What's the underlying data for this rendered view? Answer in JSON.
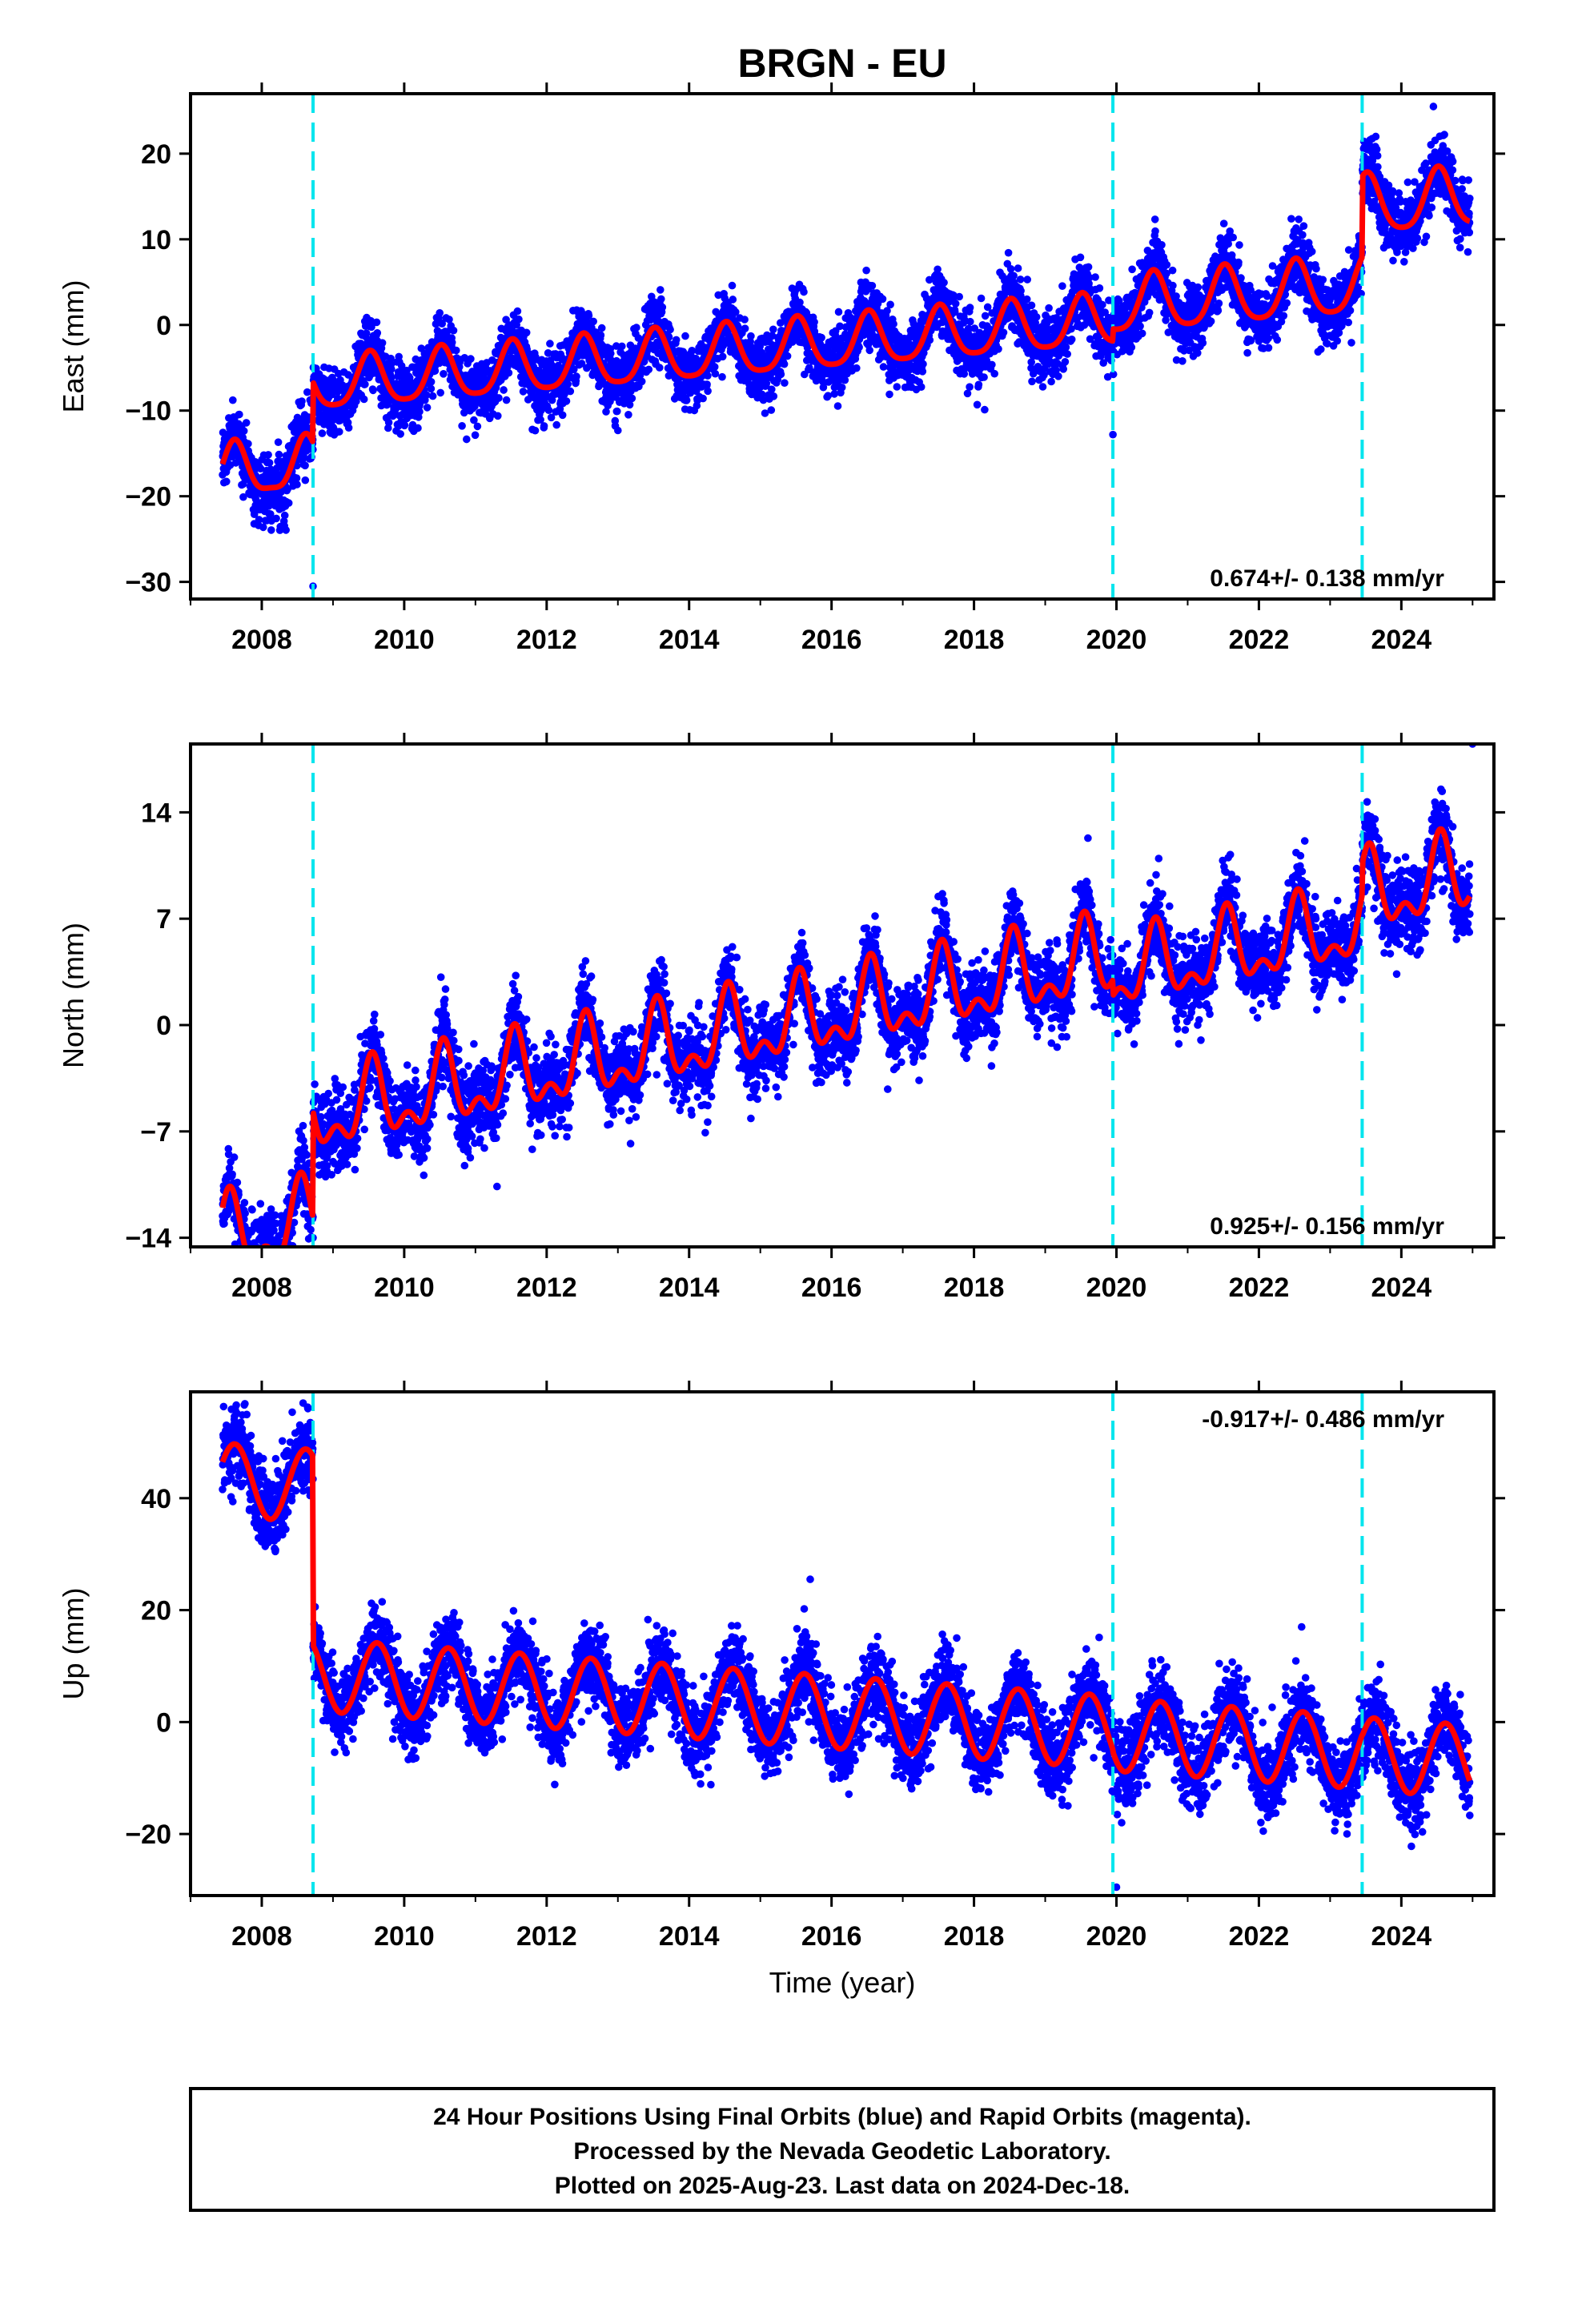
{
  "title": "BRGN - EU",
  "xlabel": "Time (year)",
  "caption": {
    "line1": "24 Hour Positions Using Final Orbits (blue) and Rapid Orbits (magenta).",
    "line2": "Processed by the Nevada Geodetic Laboratory.",
    "line3": "Plotted on 2025-Aug-23. Last data on 2024-Dec-18."
  },
  "colors": {
    "points": "#0000ff",
    "model": "#ff0000",
    "steps": "#00e5ee",
    "frame": "#000000"
  },
  "chart_data": [
    {
      "type": "scatter",
      "name": "East",
      "ylabel": "East (mm)",
      "xlim": [
        2007.0,
        2025.3
      ],
      "ylim": [
        -32,
        27
      ],
      "xticks": [
        2008,
        2010,
        2012,
        2014,
        2016,
        2018,
        2020,
        2022,
        2024
      ],
      "xtick_labels": [
        "2008",
        "2010",
        "2012",
        "2014",
        "2016",
        "2018",
        "2020",
        "2022",
        "2024"
      ],
      "yticks": [
        -30,
        -20,
        -10,
        0,
        10,
        20
      ],
      "ytick_labels": [
        "−30",
        "−20",
        "−10",
        "0",
        "10",
        "20"
      ],
      "rate_label": "0.674+/- 0.138 mm/yr",
      "rate_position": "bottom-right",
      "steps": [
        2008.72,
        2019.95,
        2023.45
      ],
      "model": {
        "data_start": 2007.45,
        "data_end": 2024.96,
        "trend": 0.674,
        "anchor_year": 2016.0,
        "pieces": [
          {
            "start": 2007.45,
            "end": 2008.72,
            "offset": -11.5,
            "amp": 3.0,
            "phase_year": 2008.62,
            "amp2": 0.8
          },
          {
            "start": 2008.72,
            "end": 2019.95,
            "offset": -2.2,
            "amp": 3.0,
            "phase_year": 2008.52,
            "amp2": 0.6
          },
          {
            "start": 2019.95,
            "end": 2023.45,
            "offset": -0.5,
            "amp": 3.3,
            "phase_year": 2008.52,
            "amp2": 0.6
          },
          {
            "start": 2023.45,
            "end": 2024.96,
            "offset": 8.8,
            "amp": 3.4,
            "phase_year": 2008.52,
            "amp2": 0.6
          }
        ]
      },
      "scatter_sigma": 1.9,
      "outliers": [
        [
          2008.72,
          -30.5
        ],
        [
          2019.95,
          -12.8
        ],
        [
          2024.45,
          25.5
        ]
      ]
    },
    {
      "type": "scatter",
      "name": "North",
      "ylabel": "North (mm)",
      "xlim": [
        2007.0,
        2025.3
      ],
      "ylim": [
        -14.6,
        18.5
      ],
      "xticks": [
        2008,
        2010,
        2012,
        2014,
        2016,
        2018,
        2020,
        2022,
        2024
      ],
      "xtick_labels": [
        "2008",
        "2010",
        "2012",
        "2014",
        "2016",
        "2018",
        "2020",
        "2022",
        "2024"
      ],
      "yticks": [
        -14,
        -7,
        0,
        7,
        14
      ],
      "ytick_labels": [
        "−14",
        "−7",
        "0",
        "7",
        "14"
      ],
      "rate_label": "0.925+/- 0.156 mm/yr",
      "rate_position": "bottom-right",
      "steps": [
        2008.72,
        2019.95,
        2023.45
      ],
      "model": {
        "data_start": 2007.45,
        "data_end": 2024.96,
        "trend": 0.925,
        "anchor_year": 2016.0,
        "pieces": [
          {
            "start": 2007.45,
            "end": 2008.72,
            "offset": -6.3,
            "amp": 2.2,
            "phase_year": 2008.55,
            "amp2": 1.3
          },
          {
            "start": 2008.72,
            "end": 2019.95,
            "offset": 0.7,
            "amp": 2.2,
            "phase_year": 2008.55,
            "amp2": 1.3
          },
          {
            "start": 2019.95,
            "end": 2023.45,
            "offset": -0.4,
            "amp": 2.1,
            "phase_year": 2008.55,
            "amp2": 1.2
          },
          {
            "start": 2023.45,
            "end": 2024.96,
            "offset": 1.5,
            "amp": 2.2,
            "phase_year": 2008.55,
            "amp2": 1.3
          }
        ]
      },
      "scatter_sigma": 1.3,
      "outliers": [
        [
          2008.72,
          -14.0
        ],
        [
          2025.0,
          18.5
        ],
        [
          2019.6,
          12.3
        ]
      ]
    },
    {
      "type": "scatter",
      "name": "Up",
      "ylabel": "Up (mm)",
      "xlim": [
        2007.0,
        2025.3
      ],
      "ylim": [
        -31,
        59
      ],
      "xticks": [
        2008,
        2010,
        2012,
        2014,
        2016,
        2018,
        2020,
        2022,
        2024
      ],
      "xtick_labels": [
        "2008",
        "2010",
        "2012",
        "2014",
        "2016",
        "2018",
        "2020",
        "2022",
        "2024"
      ],
      "yticks": [
        -20,
        0,
        20,
        40
      ],
      "ytick_labels": [
        "−20",
        "0",
        "20",
        "40"
      ],
      "rate_label": "-0.917+/- 0.486 mm/yr",
      "rate_position": "top-right",
      "steps": [
        2008.72,
        2019.95,
        2023.45
      ],
      "model": {
        "data_start": 2007.45,
        "data_end": 2024.96,
        "trend": -0.917,
        "anchor_year": 2016.0,
        "pieces": [
          {
            "start": 2007.45,
            "end": 2008.72,
            "offset": 35.5,
            "amp": 6.5,
            "phase_year": 2008.62,
            "amp2": 0.0
          },
          {
            "start": 2008.72,
            "end": 2019.95,
            "offset": 1.8,
            "amp": 6.5,
            "phase_year": 2008.62,
            "amp2": 0.0
          },
          {
            "start": 2019.95,
            "end": 2023.45,
            "offset": 1.4,
            "amp": 6.5,
            "phase_year": 2008.62,
            "amp2": 0.0
          },
          {
            "start": 2023.45,
            "end": 2024.96,
            "offset": 1.2,
            "amp": 6.5,
            "phase_year": 2008.62,
            "amp2": 0.0
          }
        ]
      },
      "scatter_sigma": 3.6,
      "outliers": [
        [
          2008.58,
          57.0
        ],
        [
          2008.66,
          52.0
        ],
        [
          2020.0,
          -29.5
        ],
        [
          2022.6,
          17.0
        ],
        [
          2015.7,
          25.5
        ]
      ]
    }
  ]
}
